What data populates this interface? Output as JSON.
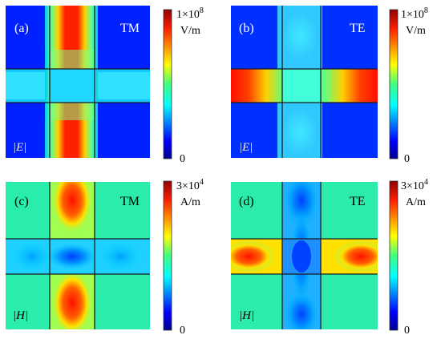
{
  "figure": {
    "panels": [
      {
        "id": "a",
        "label": "(a)",
        "mode": "TM",
        "field": "|E|",
        "colorbar": {
          "max_label": "1×10",
          "max_exp": "8",
          "unit": "V/m",
          "min_label": "0"
        }
      },
      {
        "id": "b",
        "label": "(b)",
        "mode": "TE",
        "field": "|E|",
        "colorbar": {
          "max_label": "1×10",
          "max_exp": "8",
          "unit": "V/m",
          "min_label": "0"
        }
      },
      {
        "id": "c",
        "label": "(c)",
        "mode": "TM",
        "field": "|H|",
        "colorbar": {
          "max_label": "3×10",
          "max_exp": "4",
          "unit": "A/m",
          "min_label": "0"
        }
      },
      {
        "id": "d",
        "label": "(d)",
        "mode": "TE",
        "field": "|H|",
        "colorbar": {
          "max_label": "3×10",
          "max_exp": "4",
          "unit": "A/m",
          "min_label": "0"
        }
      }
    ],
    "colors": {
      "colormap": [
        "#00008f",
        "#0000ff",
        "#0080ff",
        "#00ffff",
        "#80ff80",
        "#ffff00",
        "#ff8000",
        "#ff0000",
        "#800000"
      ],
      "line": "#202020"
    }
  }
}
